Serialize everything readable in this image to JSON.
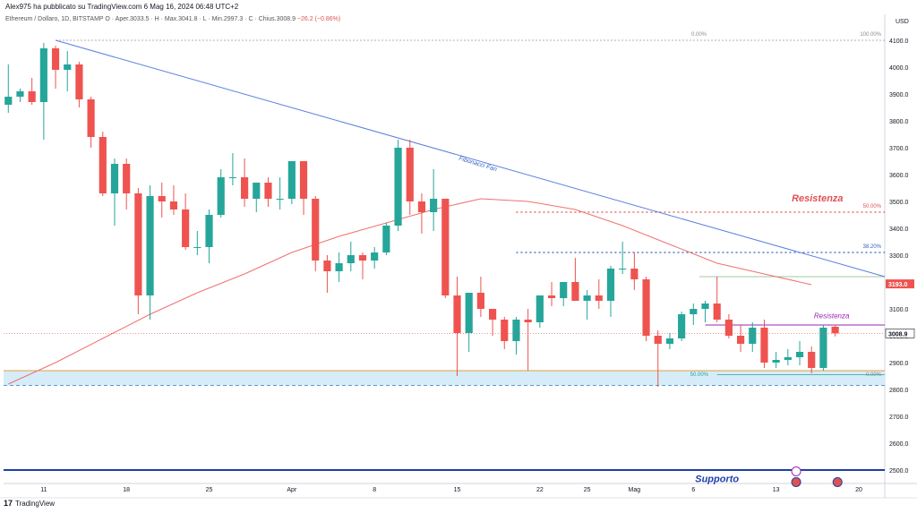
{
  "header": {
    "author_line": "Alex975 ha pubblicato su TradingView.com 6 Mag 16, 2024 06:48 UTC+2"
  },
  "symbol_line": {
    "name": "Ethereum / Dollaro, 1D, BITSTAMP",
    "ohlc": "O · Aper.3033.5 · H · Max.3041.8 · L · Min.2997.3 · C · Chius.3008.9",
    "change": "−26.2 (−0.86%)"
  },
  "footer": {
    "logo_mark": "17",
    "brand": "TradingView"
  },
  "colors": {
    "up": "#26a69a",
    "down": "#ef5350",
    "fan": "#5b7fe0",
    "ma": "#f07070",
    "resist_purple": "#9c27b0",
    "support_blue": "#1e3fa8",
    "zone_fill": "#d6ecf8"
  },
  "chart_data": {
    "type": "candlestick",
    "currency_label": "USD",
    "y_ticks": [
      2500.0,
      2600.0,
      2700.0,
      2800.0,
      2900.0,
      3000.0,
      3100.0,
      3200.0,
      3300.0,
      3400.0,
      3500.0,
      3600.0,
      3700.0,
      3800.0,
      3900.0,
      4000.0,
      4100.0
    ],
    "y_tick_labels": [
      "2500.0",
      "2600.0",
      "2700.0",
      "2800.0",
      "2900.0",
      "3000.0",
      "3100.0",
      "3200.0",
      "3300.0",
      "3400.0",
      "3500.0",
      "3600.0",
      "3700.0",
      "3800.0",
      "3900.0",
      "4000.0",
      "4100.0"
    ],
    "ylim": [
      2450,
      4150
    ],
    "x_labels": [
      {
        "day": 11,
        "text": "11"
      },
      {
        "day": 18,
        "text": "18"
      },
      {
        "day": 25,
        "text": "25"
      },
      {
        "day": 32,
        "text": "Apr"
      },
      {
        "day": 39,
        "text": "8"
      },
      {
        "day": 46,
        "text": "15"
      },
      {
        "day": 53,
        "text": "22"
      },
      {
        "day": 57,
        "text": "25"
      },
      {
        "day": 61,
        "text": "Mag"
      },
      {
        "day": 66,
        "text": "6"
      },
      {
        "day": 73,
        "text": "13"
      },
      {
        "day": 80,
        "text": "20"
      }
    ],
    "xlim": [
      7.6,
      82.2
    ],
    "candles": [
      {
        "o": 3860,
        "h": 4010,
        "l": 3830,
        "c": 3890
      },
      {
        "o": 3890,
        "h": 3920,
        "l": 3870,
        "c": 3910
      },
      {
        "o": 3910,
        "h": 3960,
        "l": 3860,
        "c": 3870
      },
      {
        "o": 3870,
        "h": 4090,
        "l": 3730,
        "c": 4070
      },
      {
        "o": 4070,
        "h": 4080,
        "l": 3920,
        "c": 3990
      },
      {
        "o": 3990,
        "h": 4060,
        "l": 3910,
        "c": 4010
      },
      {
        "o": 4010,
        "h": 4020,
        "l": 3850,
        "c": 3880
      },
      {
        "o": 3880,
        "h": 3890,
        "l": 3700,
        "c": 3740
      },
      {
        "o": 3740,
        "h": 3760,
        "l": 3520,
        "c": 3530
      },
      {
        "o": 3530,
        "h": 3660,
        "l": 3410,
        "c": 3640
      },
      {
        "o": 3640,
        "h": 3660,
        "l": 3470,
        "c": 3530
      },
      {
        "o": 3530,
        "h": 3550,
        "l": 3080,
        "c": 3150
      },
      {
        "o": 3150,
        "h": 3560,
        "l": 3060,
        "c": 3520
      },
      {
        "o": 3520,
        "h": 3570,
        "l": 3440,
        "c": 3500
      },
      {
        "o": 3500,
        "h": 3560,
        "l": 3450,
        "c": 3470
      },
      {
        "o": 3470,
        "h": 3530,
        "l": 3320,
        "c": 3330
      },
      {
        "o": 3330,
        "h": 3390,
        "l": 3300,
        "c": 3330
      },
      {
        "o": 3330,
        "h": 3470,
        "l": 3270,
        "c": 3450
      },
      {
        "o": 3450,
        "h": 3620,
        "l": 3440,
        "c": 3590
      },
      {
        "o": 3590,
        "h": 3680,
        "l": 3560,
        "c": 3590
      },
      {
        "o": 3590,
        "h": 3660,
        "l": 3480,
        "c": 3510
      },
      {
        "o": 3510,
        "h": 3570,
        "l": 3460,
        "c": 3570
      },
      {
        "o": 3570,
        "h": 3590,
        "l": 3480,
        "c": 3510
      },
      {
        "o": 3510,
        "h": 3590,
        "l": 3470,
        "c": 3510
      },
      {
        "o": 3510,
        "h": 3640,
        "l": 3490,
        "c": 3650
      },
      {
        "o": 3650,
        "h": 3650,
        "l": 3450,
        "c": 3510
      },
      {
        "o": 3510,
        "h": 3520,
        "l": 3240,
        "c": 3280
      },
      {
        "o": 3280,
        "h": 3300,
        "l": 3160,
        "c": 3240
      },
      {
        "o": 3240,
        "h": 3310,
        "l": 3200,
        "c": 3270
      },
      {
        "o": 3270,
        "h": 3350,
        "l": 3240,
        "c": 3300
      },
      {
        "o": 3300,
        "h": 3310,
        "l": 3210,
        "c": 3280
      },
      {
        "o": 3280,
        "h": 3330,
        "l": 3250,
        "c": 3310
      },
      {
        "o": 3310,
        "h": 3420,
        "l": 3300,
        "c": 3410
      },
      {
        "o": 3410,
        "h": 3730,
        "l": 3390,
        "c": 3700
      },
      {
        "o": 3700,
        "h": 3730,
        "l": 3450,
        "c": 3500
      },
      {
        "o": 3500,
        "h": 3530,
        "l": 3380,
        "c": 3460
      },
      {
        "o": 3460,
        "h": 3620,
        "l": 3390,
        "c": 3510
      },
      {
        "o": 3510,
        "h": 3510,
        "l": 3140,
        "c": 3150
      },
      {
        "o": 3150,
        "h": 3220,
        "l": 2850,
        "c": 3010
      },
      {
        "o": 3010,
        "h": 3160,
        "l": 2940,
        "c": 3160
      },
      {
        "o": 3160,
        "h": 3220,
        "l": 3070,
        "c": 3100
      },
      {
        "o": 3100,
        "h": 3100,
        "l": 3000,
        "c": 3060
      },
      {
        "o": 3060,
        "h": 3070,
        "l": 2950,
        "c": 2980
      },
      {
        "o": 2980,
        "h": 3070,
        "l": 2930,
        "c": 3060
      },
      {
        "o": 3060,
        "h": 3100,
        "l": 2870,
        "c": 3050
      },
      {
        "o": 3050,
        "h": 3150,
        "l": 3030,
        "c": 3150
      },
      {
        "o": 3150,
        "h": 3200,
        "l": 3110,
        "c": 3140
      },
      {
        "o": 3140,
        "h": 3190,
        "l": 3110,
        "c": 3200
      },
      {
        "o": 3200,
        "h": 3290,
        "l": 3130,
        "c": 3130
      },
      {
        "o": 3130,
        "h": 3170,
        "l": 3060,
        "c": 3150
      },
      {
        "o": 3150,
        "h": 3210,
        "l": 3100,
        "c": 3130
      },
      {
        "o": 3130,
        "h": 3260,
        "l": 3070,
        "c": 3250
      },
      {
        "o": 3250,
        "h": 3350,
        "l": 3230,
        "c": 3250
      },
      {
        "o": 3250,
        "h": 3310,
        "l": 3170,
        "c": 3210
      },
      {
        "o": 3210,
        "h": 3220,
        "l": 2980,
        "c": 3000
      },
      {
        "o": 3000,
        "h": 3020,
        "l": 2810,
        "c": 2970
      },
      {
        "o": 2970,
        "h": 3010,
        "l": 2950,
        "c": 2990
      },
      {
        "o": 2990,
        "h": 3090,
        "l": 2980,
        "c": 3080
      },
      {
        "o": 3080,
        "h": 3120,
        "l": 3040,
        "c": 3100
      },
      {
        "o": 3100,
        "h": 3130,
        "l": 3050,
        "c": 3120
      },
      {
        "o": 3120,
        "h": 3220,
        "l": 3050,
        "c": 3060
      },
      {
        "o": 3060,
        "h": 3080,
        "l": 2990,
        "c": 3000
      },
      {
        "o": 3000,
        "h": 3040,
        "l": 2940,
        "c": 2970
      },
      {
        "o": 2970,
        "h": 3050,
        "l": 2940,
        "c": 3030
      },
      {
        "o": 3030,
        "h": 3060,
        "l": 2880,
        "c": 2900
      },
      {
        "o": 2900,
        "h": 2940,
        "l": 2880,
        "c": 2910
      },
      {
        "o": 2910,
        "h": 2950,
        "l": 2890,
        "c": 2920
      },
      {
        "o": 2920,
        "h": 2980,
        "l": 2890,
        "c": 2940
      },
      {
        "o": 2940,
        "h": 2960,
        "l": 2860,
        "c": 2880
      },
      {
        "o": 2880,
        "h": 3040,
        "l": 2870,
        "c": 3030
      },
      {
        "o": 3033.5,
        "h": 3041.8,
        "l": 2997.3,
        "c": 3008.9
      }
    ],
    "first_candle_day": 8,
    "ma_line": [
      {
        "day": 8,
        "v": 2820
      },
      {
        "day": 12,
        "v": 2900
      },
      {
        "day": 16,
        "v": 2990
      },
      {
        "day": 20,
        "v": 3080
      },
      {
        "day": 24,
        "v": 3160
      },
      {
        "day": 28,
        "v": 3230
      },
      {
        "day": 32,
        "v": 3310
      },
      {
        "day": 36,
        "v": 3370
      },
      {
        "day": 40,
        "v": 3420
      },
      {
        "day": 44,
        "v": 3470
      },
      {
        "day": 48,
        "v": 3510
      },
      {
        "day": 52,
        "v": 3500
      },
      {
        "day": 56,
        "v": 3470
      },
      {
        "day": 60,
        "v": 3410
      },
      {
        "day": 64,
        "v": 3340
      },
      {
        "day": 68,
        "v": 3270
      },
      {
        "day": 72,
        "v": 3230
      },
      {
        "day": 76,
        "v": 3190
      }
    ],
    "fib_fan": {
      "label": "Fibonacci Fan",
      "start": {
        "day": 12,
        "v": 4100
      },
      "end": {
        "day": 82.2,
        "v": 3220
      },
      "levels": [
        {
          "label": "100.00%",
          "v": 4100
        },
        {
          "label": "50.00%",
          "v": 3460
        },
        {
          "label": "38.20%",
          "v": 3310
        },
        {
          "label": "50.00%",
          "v": 2840
        },
        {
          "label": "0.00%",
          "v": 2840
        }
      ]
    },
    "price_badges": [
      {
        "text": "3193.0",
        "v": 3193.0,
        "color": "#ef5350"
      },
      {
        "text": "3008.9",
        "v": 3008.9,
        "color": "#ffffff"
      }
    ],
    "annotations": {
      "resist_red": "Resistenza",
      "resist_purple": "Resistenza",
      "support": "Supporto",
      "fib_100": "100.00%",
      "fib_0_top": "0.00%",
      "fib_50_top": "50.00%",
      "fib_382": "38.20%",
      "fib_50_bottom": "50.00%",
      "fib_0_bottom": "0.00%"
    }
  }
}
